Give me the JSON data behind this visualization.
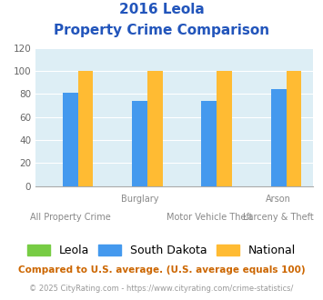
{
  "title_line1": "2016 Leola",
  "title_line2": "Property Crime Comparison",
  "groups": [
    "All Property Crime",
    "Burglary",
    "Motor Vehicle Theft",
    "Larceny & Theft"
  ],
  "series": [
    "Leola",
    "South Dakota",
    "National"
  ],
  "values": {
    "Leola": [
      0,
      0,
      0,
      0
    ],
    "South Dakota": [
      81,
      74,
      74,
      84
    ],
    "National": [
      100,
      100,
      100,
      100
    ]
  },
  "colors": [
    "#77cc44",
    "#4499ee",
    "#ffbb33"
  ],
  "ylim": [
    0,
    120
  ],
  "yticks": [
    0,
    20,
    40,
    60,
    80,
    100,
    120
  ],
  "bar_background": "#ddeef5",
  "title_color": "#2255bb",
  "bottom_label_row1": [
    "",
    "Burglary",
    "",
    "Arson"
  ],
  "bottom_label_row2": [
    "All Property Crime",
    "Motor Vehicle Theft",
    "",
    "Larceny & Theft"
  ],
  "legend_fontsize": 9,
  "footnote1": "Compared to U.S. average. (U.S. average equals 100)",
  "footnote2": "© 2025 CityRating.com - https://www.cityrating.com/crime-statistics/",
  "footnote1_color": "#cc6600",
  "footnote2_color": "#999999"
}
